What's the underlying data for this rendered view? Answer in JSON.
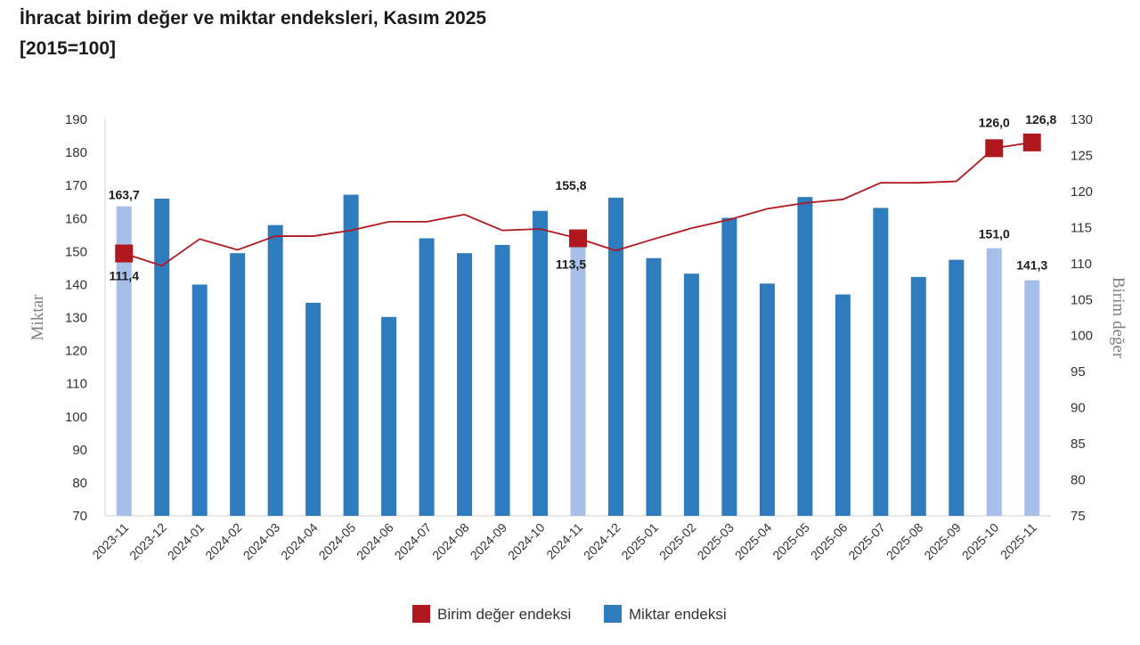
{
  "title": {
    "line1": "İhracat birim değer ve miktar endeksleri, Kasım 2025",
    "line2": "[2015=100]"
  },
  "chart_data": {
    "type": "bar",
    "categories": [
      "2023-11",
      "2023-12",
      "2024-01",
      "2024-02",
      "2024-03",
      "2024-04",
      "2024-05",
      "2024-06",
      "2024-07",
      "2024-08",
      "2024-09",
      "2024-10",
      "2024-11",
      "2024-12",
      "2025-01",
      "2025-02",
      "2025-03",
      "2025-04",
      "2025-05",
      "2025-06",
      "2025-07",
      "2025-08",
      "2025-09",
      "2025-10",
      "2025-11"
    ],
    "series": [
      {
        "name": "Miktar endeksi",
        "type": "bar",
        "axis": "left",
        "color": "#2e7bbd",
        "highlight_color": "#a7bfe8",
        "highlight_indices": [
          0,
          12,
          23,
          24
        ],
        "values": [
          163.7,
          166.0,
          140.0,
          149.5,
          158.0,
          134.5,
          167.2,
          130.2,
          154.0,
          149.5,
          152.0,
          162.3,
          155.8,
          166.3,
          148.0,
          143.3,
          160.2,
          140.3,
          166.5,
          137.0,
          163.2,
          142.3,
          147.5,
          151.0,
          141.3
        ]
      },
      {
        "name": "Birim değer endeksi",
        "type": "line",
        "axis": "right",
        "color": "#b0181f",
        "marker_indices": [
          0,
          12,
          23,
          24
        ],
        "values": [
          111.4,
          109.7,
          113.4,
          111.9,
          113.8,
          113.8,
          114.6,
          115.8,
          115.8,
          116.8,
          114.6,
          114.8,
          113.5,
          111.8,
          113.4,
          114.9,
          116.1,
          117.6,
          118.4,
          118.9,
          121.2,
          121.2,
          121.4,
          126.0,
          126.8
        ]
      }
    ],
    "data_labels": [
      {
        "series": 0,
        "index": 0,
        "text": "163,7"
      },
      {
        "series": 1,
        "index": 0,
        "text": "111,4"
      },
      {
        "series": 0,
        "index": 12,
        "text": "155,8"
      },
      {
        "series": 1,
        "index": 12,
        "text": "113,5"
      },
      {
        "series": 0,
        "index": 23,
        "text": "151,0"
      },
      {
        "series": 1,
        "index": 23,
        "text": "126,0"
      },
      {
        "series": 0,
        "index": 24,
        "text": "141,3"
      },
      {
        "series": 1,
        "index": 24,
        "text": "126,8"
      }
    ],
    "ylabel_left": "Miktar",
    "ylabel_right": "Birim değer",
    "ylim_left": [
      70,
      190
    ],
    "yticks_left": [
      70,
      80,
      90,
      100,
      110,
      120,
      130,
      140,
      150,
      160,
      170,
      180,
      190
    ],
    "ylim_right": [
      75,
      130
    ],
    "yticks_right": [
      75,
      80,
      85,
      90,
      95,
      100,
      105,
      110,
      115,
      120,
      125,
      130
    ],
    "grid": false,
    "legend_position": "bottom"
  }
}
